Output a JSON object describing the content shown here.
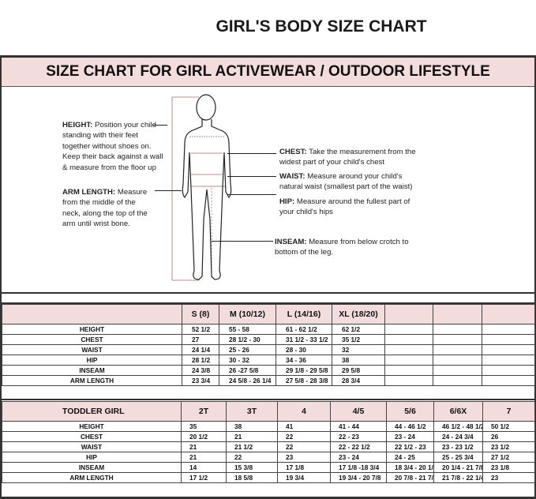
{
  "title": "GIRL'S BODY SIZE CHART",
  "banner": "SIZE CHART FOR GIRL ACTIVEWEAR / OUTDOOR LIFESTYLE",
  "instructions": {
    "height": {
      "label": "HEIGHT:",
      "text": "Position your child standing with their feet together without shoes on. Keep their back against a wall & measure from the floor up"
    },
    "arm_length": {
      "label": "ARM LENGTH:",
      "text": "Measure from the middle of the neck, along the top of the arm until wrist bone."
    },
    "chest": {
      "label": "CHEST:",
      "text": "Take the measurement from the widest part of your child's chest"
    },
    "waist": {
      "label": "WAIST:",
      "text": "Measure around your child's natural waist (smallest part of the waist)"
    },
    "hip": {
      "label": "HIP:",
      "text": "Measure around the fullest part of your child's hips"
    },
    "inseam": {
      "label": "INSEAM:",
      "text": "Measure from below crotch to bottom of the leg."
    }
  },
  "girl_table": {
    "header": [
      "",
      "S (8)",
      "M (10/12)",
      "L (14/16)",
      "XL (18/20)",
      "",
      "",
      ""
    ],
    "rows": [
      [
        "HEIGHT",
        "52 1/2",
        "55 - 58",
        "61 -  62 1/2",
        "62 1/2",
        "",
        "",
        ""
      ],
      [
        "CHEST",
        "27",
        "28 1/2 - 30",
        "31 1/2 - 33 1/2",
        "35 1/2",
        "",
        "",
        ""
      ],
      [
        "WAIST",
        "24 1/4",
        "25  - 26",
        "28 - 30",
        "32",
        "",
        "",
        ""
      ],
      [
        "HIP",
        "28 1/2",
        "30 - 32",
        "34 - 36",
        "38",
        "",
        "",
        ""
      ],
      [
        "INSEAM",
        "24 3/8",
        "26 -27 5/8",
        "29 1/8 - 29 5/8",
        "29 5/8",
        "",
        "",
        ""
      ],
      [
        "ARM LENGTH",
        "23 3/4",
        "24 5/8 - 26 1/4",
        "27 5/8  - 28 3/8",
        "28 3/4",
        "",
        "",
        ""
      ]
    ]
  },
  "toddler_table": {
    "header": [
      "TODDLER GIRL",
      "2T",
      "3T",
      "4",
      "4/5",
      "5/6",
      "6/6X",
      "7"
    ],
    "rows": [
      [
        "HEIGHT",
        "35",
        "38",
        "41",
        "41 - 44",
        "44  - 46 1/2",
        "46 1/2 - 48 1/2",
        "50 1/2"
      ],
      [
        "CHEST",
        "20 1/2",
        "21",
        "22",
        "22 - 23",
        "23 - 24",
        "24 -  24 3/4",
        "26"
      ],
      [
        "WAIST",
        "21",
        "21 1/2",
        "22",
        "22 - 22 1/2",
        "22 1/2 - 23",
        "23 - 23 1/2",
        "23 1/2"
      ],
      [
        "HIP",
        "21",
        "22",
        "23",
        "23 - 24",
        "24 - 25",
        "25 - 25 3/4",
        "27 1/2"
      ],
      [
        "INSEAM",
        "14",
        "15 3/8",
        "17 1/8",
        "17 1/8 -18 3/4",
        "18 3/4 - 20 1/4",
        "20 1/4 - 21 7/8",
        "23 1/8"
      ],
      [
        "ARM LENGTH",
        "17 1/2",
        "18 5/8",
        "19 3/4",
        "19 3/4 - 20  7/8",
        "20 7/8 - 21 7/8",
        "21 7/8  - 22 1/4",
        "23"
      ]
    ]
  },
  "colors": {
    "header_pink": "#f3dcdc",
    "measure_line": "#c98a8a"
  }
}
